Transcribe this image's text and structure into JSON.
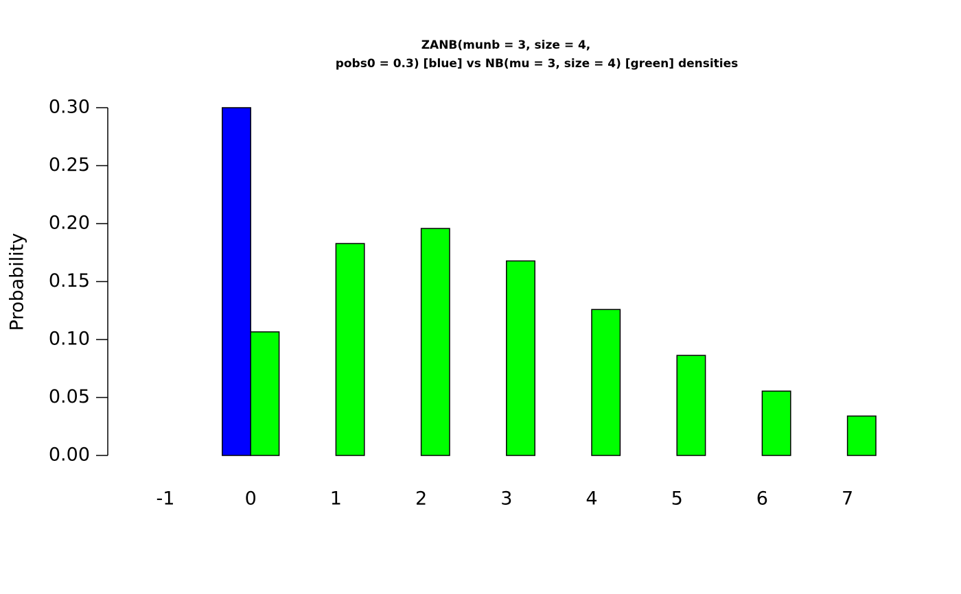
{
  "chart_data": {
    "type": "bar",
    "title": [
      "ZANB(munb = 3, size = 4,",
      "pobs0 = 0.3) [blue] vs NB(mu = 3, size = 4) [green] densities"
    ],
    "y_label": "Probability",
    "categories": [
      "-1",
      "0",
      "1",
      "2",
      "3",
      "4",
      "5",
      "6",
      "7"
    ],
    "series": [
      {
        "color": "#0000ff",
        "values": [
          0,
          0.3,
          null,
          null,
          null,
          null,
          null,
          null,
          null
        ]
      },
      {
        "color": "#00ff00",
        "values": [
          0,
          0.1066,
          0.1828,
          0.1958,
          0.1678,
          0.1259,
          0.0863,
          0.0555,
          0.034
        ]
      }
    ],
    "ylim": [
      0,
      0.3
    ],
    "yticks": [
      {
        "value": 0,
        "label": "0.00"
      },
      {
        "value": 0.05,
        "label": "0.05"
      },
      {
        "value": 0.1,
        "label": "0.10"
      },
      {
        "value": 0.15,
        "label": "0.15"
      },
      {
        "value": 0.2,
        "label": "0.20"
      },
      {
        "value": 0.25,
        "label": "0.25"
      },
      {
        "value": 0.3,
        "label": "0.30"
      }
    ]
  }
}
